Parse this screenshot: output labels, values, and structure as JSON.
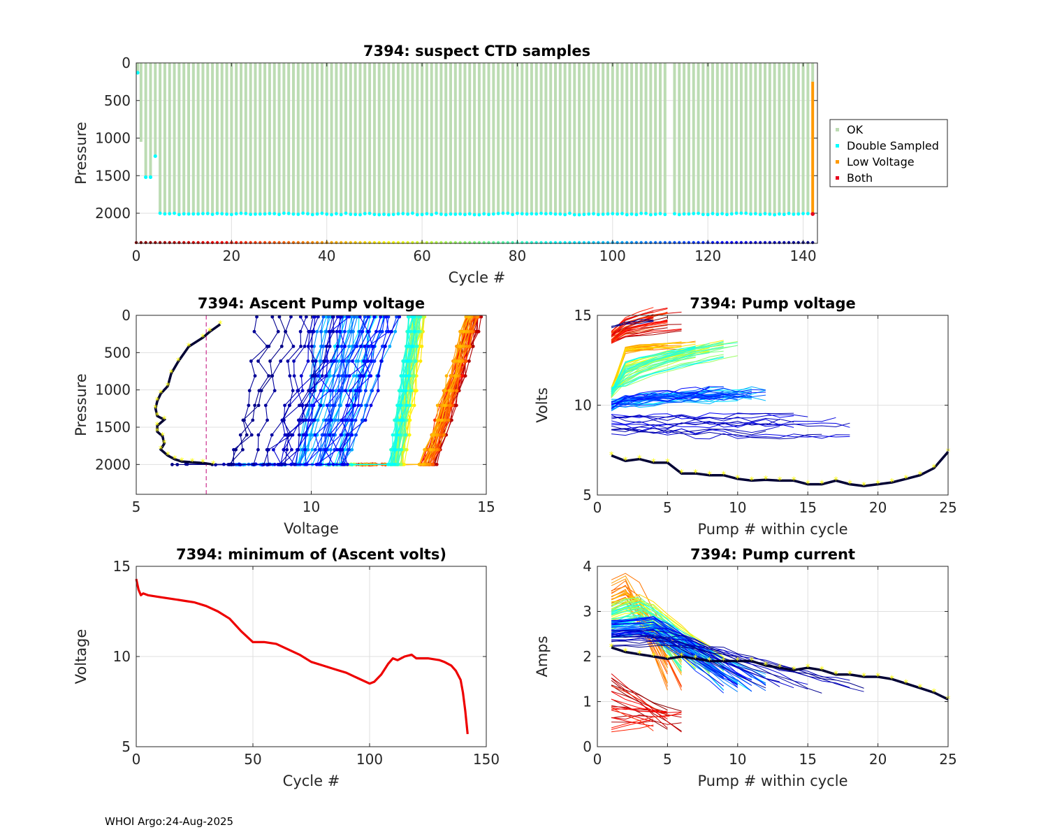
{
  "footer": "WHOI Argo:24-Aug-2025",
  "colors": {
    "ok": "#bcdcb3",
    "double_sampled": "#00ffff",
    "low_voltage": "#ff9900",
    "both": "#e8001c",
    "min_volts_line": "#ee0000",
    "threshold_line": "#cc2e8e",
    "highlight_marker": "#ffff00"
  },
  "chart_data": [
    {
      "id": "suspect-ctd",
      "type": "scatter",
      "title": "7394: suspect CTD samples",
      "xlabel": "Cycle #",
      "ylabel": "Pressure",
      "xlim": [
        0,
        143
      ],
      "ylim": [
        0,
        2400
      ],
      "y_reversed": true,
      "xticks": [
        0,
        20,
        40,
        60,
        80,
        100,
        120,
        140
      ],
      "yticks": [
        0,
        500,
        1000,
        1500,
        2000
      ],
      "legend": [
        "OK",
        "Double Sampled",
        "Low Voltage",
        "Both"
      ],
      "legend_position": "outside-right",
      "cycles": {
        "first": 1,
        "last": 142,
        "missing": [
          112
        ]
      },
      "profile_max_pressure": {
        "1": 1050,
        "2": 1520,
        "3": 1520,
        "4": 1240,
        "default": 2010
      },
      "double_sampled_points": [
        {
          "cycle": 0.3,
          "pressure": 130
        },
        {
          "cycle": 2,
          "pressure": 1520
        },
        {
          "cycle": 3,
          "pressure": 1520
        },
        {
          "cycle": 4,
          "pressure": 1240
        }
      ],
      "double_sampled_bottom_range": [
        5,
        141
      ],
      "low_voltage_segment": {
        "cycle": 142,
        "pressure_from": 250,
        "pressure_to": 2010
      },
      "both_point": {
        "cycle": 142,
        "pressure": 2010
      },
      "cycle_marker_pressure": 2400
    },
    {
      "id": "ascent-pump-voltage",
      "type": "line",
      "title": "7394: Ascent Pump voltage",
      "xlabel": "Voltage",
      "ylabel": "Pressure",
      "xlim": [
        5,
        15
      ],
      "ylim": [
        0,
        2400
      ],
      "y_reversed": true,
      "xticks": [
        5,
        10,
        15
      ],
      "yticks": [
        0,
        500,
        1000,
        1500,
        2000
      ],
      "threshold_voltage": 7,
      "bottom_pressure": 2000,
      "last_cycle_profile": [
        [
          7.4,
          120
        ],
        [
          7.1,
          220
        ],
        [
          6.9,
          300
        ],
        [
          6.5,
          420
        ],
        [
          6.2,
          620
        ],
        [
          6.0,
          780
        ],
        [
          5.9,
          950
        ],
        [
          5.7,
          1050
        ],
        [
          5.6,
          1150
        ],
        [
          5.55,
          1250
        ],
        [
          5.6,
          1350
        ],
        [
          5.8,
          1400
        ],
        [
          5.6,
          1480
        ],
        [
          5.6,
          1560
        ],
        [
          5.75,
          1620
        ],
        [
          5.8,
          1720
        ],
        [
          5.7,
          1800
        ],
        [
          5.9,
          1880
        ],
        [
          6.1,
          1930
        ],
        [
          6.3,
          1960
        ],
        [
          6.6,
          1970
        ],
        [
          6.9,
          1980
        ],
        [
          7.2,
          2000
        ]
      ],
      "family_color_scale": "jet, by cycle"
    },
    {
      "id": "pump-voltage",
      "type": "line",
      "title": "7394: Pump voltage",
      "xlabel": "Pump # within cycle",
      "ylabel": "Volts",
      "xlim": [
        0,
        25
      ],
      "ylim": [
        5,
        15
      ],
      "xticks": [
        0,
        5,
        10,
        15,
        20,
        25
      ],
      "yticks": [
        5,
        10,
        15
      ],
      "last_cycle": [
        7.2,
        6.9,
        7.0,
        6.8,
        6.8,
        6.2,
        6.2,
        6.1,
        6.1,
        5.9,
        5.8,
        5.85,
        5.8,
        5.8,
        5.6,
        5.6,
        5.8,
        5.6,
        5.5,
        5.6,
        5.7,
        5.9,
        6.1,
        6.5,
        7.4
      ],
      "family_color_scale": "jet, by cycle"
    },
    {
      "id": "min-ascent-volts",
      "type": "line",
      "title": "7394: minimum of (Ascent volts)",
      "xlabel": "Cycle #",
      "ylabel": "Voltage",
      "xlim": [
        0,
        150
      ],
      "ylim": [
        5,
        15
      ],
      "xticks": [
        0,
        50,
        100,
        150
      ],
      "yticks": [
        5,
        10,
        15
      ],
      "x": [
        0,
        1,
        2,
        3,
        5,
        10,
        15,
        20,
        25,
        30,
        35,
        40,
        45,
        50,
        55,
        60,
        65,
        70,
        75,
        80,
        85,
        90,
        95,
        100,
        102,
        105,
        108,
        110,
        112,
        115,
        118,
        120,
        122,
        125,
        130,
        132,
        135,
        137,
        139,
        140,
        141,
        142
      ],
      "y": [
        14.3,
        13.7,
        13.4,
        13.5,
        13.4,
        13.3,
        13.2,
        13.1,
        13.0,
        12.8,
        12.5,
        12.1,
        11.4,
        10.8,
        10.8,
        10.7,
        10.4,
        10.1,
        9.7,
        9.5,
        9.3,
        9.1,
        8.8,
        8.5,
        8.6,
        9.0,
        9.6,
        9.9,
        9.8,
        10.0,
        10.1,
        9.9,
        9.9,
        9.9,
        9.8,
        9.7,
        9.5,
        9.2,
        8.7,
        8.0,
        7.0,
        5.7
      ]
    },
    {
      "id": "pump-current",
      "type": "line",
      "title": "7394: Pump current",
      "xlabel": "Pump # within cycle",
      "ylabel": "Amps",
      "xlim": [
        0,
        25
      ],
      "ylim": [
        0,
        4
      ],
      "xticks": [
        0,
        5,
        10,
        15,
        20,
        25
      ],
      "yticks": [
        0,
        1,
        2,
        3,
        4
      ],
      "last_cycle": [
        2.2,
        2.1,
        2.05,
        2.0,
        1.95,
        2.0,
        1.95,
        1.9,
        1.9,
        1.9,
        1.9,
        1.8,
        1.75,
        1.7,
        1.75,
        1.7,
        1.6,
        1.6,
        1.55,
        1.55,
        1.5,
        1.4,
        1.3,
        1.2,
        1.05
      ],
      "family_color_scale": "jet, by cycle"
    }
  ]
}
